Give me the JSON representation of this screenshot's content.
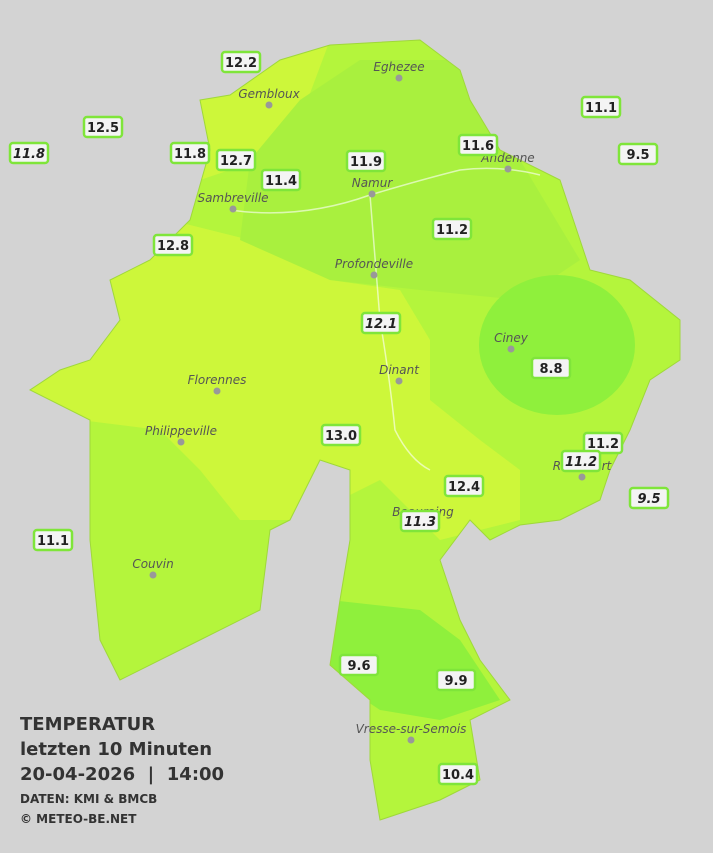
{
  "title": {
    "lines": [
      "TEMPERATUR",
      "letzten 10 Minuten",
      "20-04-2026  |  14:00"
    ],
    "credits": [
      "DATEN: KMI & BMCB",
      "© METEO-BE.NET"
    ]
  },
  "towns": [
    "Eghezee",
    "Gembloux",
    "Andenne",
    "Namur",
    "Sambreville",
    "Profondeville",
    "Ciney",
    "Dinant",
    "Florennes",
    "Philippeville",
    "Rochefort",
    "Beauraing",
    "Couvin",
    "Vresse-sur-Semois"
  ],
  "stations": [
    {
      "label": "12.2",
      "italic": false
    },
    {
      "label": "12.5",
      "italic": false
    },
    {
      "label": "11.8",
      "italic": true
    },
    {
      "label": "11.8",
      "italic": false
    },
    {
      "label": "12.7",
      "italic": false
    },
    {
      "label": "11.4",
      "italic": false
    },
    {
      "label": "11.9",
      "italic": false
    },
    {
      "label": "11.6",
      "italic": false
    },
    {
      "label": "11.1",
      "italic": false
    },
    {
      "label": "9.5",
      "italic": false
    },
    {
      "label": "11.2",
      "italic": false
    },
    {
      "label": "12.8",
      "italic": false
    },
    {
      "label": "12.1",
      "italic": true
    },
    {
      "label": "8.8",
      "italic": false
    },
    {
      "label": "13.0",
      "italic": false
    },
    {
      "label": "11.2",
      "italic": false
    },
    {
      "label": "11.2",
      "italic": true
    },
    {
      "label": "9.5",
      "italic": true
    },
    {
      "label": "12.4",
      "italic": false
    },
    {
      "label": "11.3",
      "italic": true
    },
    {
      "label": "11.1",
      "italic": false
    },
    {
      "label": "9.6",
      "italic": false
    },
    {
      "label": "9.9",
      "italic": false
    },
    {
      "label": "10.4",
      "italic": false
    }
  ]
}
